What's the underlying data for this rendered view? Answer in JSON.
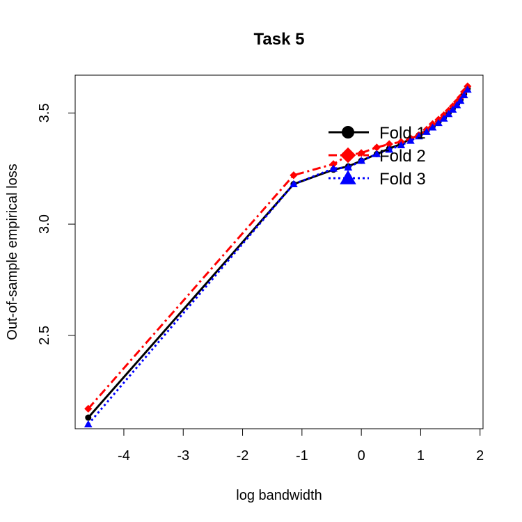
{
  "chart_data": {
    "type": "line",
    "title": "Task 5",
    "xlabel": "log bandwidth",
    "ylabel": "Out-of-sample empirical loss",
    "xlim": [
      -4.82,
      2.05
    ],
    "ylim": [
      2.08,
      3.67
    ],
    "xticks": [
      -4,
      -3,
      -2,
      -1,
      0,
      1,
      2
    ],
    "yticks": [
      2.5,
      3.0,
      3.5
    ],
    "legend_position": "top-right",
    "series": [
      {
        "name": "Fold 1",
        "color": "#000000",
        "line_style": "solid",
        "marker": "circle",
        "points": [
          [
            -4.6,
            2.13
          ],
          [
            -1.14,
            3.18
          ],
          [
            -0.47,
            3.245
          ],
          [
            -0.22,
            3.26
          ],
          [
            0,
            3.285
          ],
          [
            0.26,
            3.315
          ],
          [
            0.47,
            3.34
          ],
          [
            0.67,
            3.36
          ],
          [
            0.83,
            3.385
          ],
          [
            0.97,
            3.4
          ],
          [
            1.1,
            3.42
          ],
          [
            1.2,
            3.44
          ],
          [
            1.3,
            3.46
          ],
          [
            1.39,
            3.48
          ],
          [
            1.47,
            3.5
          ],
          [
            1.54,
            3.52
          ],
          [
            1.61,
            3.54
          ],
          [
            1.67,
            3.56
          ],
          [
            1.73,
            3.585
          ],
          [
            1.79,
            3.61
          ]
        ]
      },
      {
        "name": "Fold 2",
        "color": "#FF0000",
        "line_style": "dashdot",
        "marker": "diamond",
        "points": [
          [
            -4.6,
            2.17
          ],
          [
            -1.14,
            3.22
          ],
          [
            -0.47,
            3.27
          ],
          [
            -0.22,
            3.31
          ],
          [
            0,
            3.32
          ],
          [
            0.26,
            3.345
          ],
          [
            0.47,
            3.36
          ],
          [
            0.67,
            3.37
          ],
          [
            0.83,
            3.385
          ],
          [
            0.97,
            3.4
          ],
          [
            1.1,
            3.425
          ],
          [
            1.2,
            3.45
          ],
          [
            1.3,
            3.47
          ],
          [
            1.39,
            3.49
          ],
          [
            1.47,
            3.51
          ],
          [
            1.54,
            3.53
          ],
          [
            1.61,
            3.55
          ],
          [
            1.67,
            3.57
          ],
          [
            1.73,
            3.595
          ],
          [
            1.79,
            3.62
          ]
        ]
      },
      {
        "name": "Fold 3",
        "color": "#0000FF",
        "line_style": "dotted",
        "marker": "triangle",
        "points": [
          [
            -4.6,
            2.1
          ],
          [
            -1.14,
            3.18
          ],
          [
            -0.47,
            3.25
          ],
          [
            -0.22,
            3.255
          ],
          [
            0,
            3.285
          ],
          [
            0.26,
            3.315
          ],
          [
            0.47,
            3.335
          ],
          [
            0.67,
            3.355
          ],
          [
            0.83,
            3.375
          ],
          [
            0.97,
            3.395
          ],
          [
            1.1,
            3.415
          ],
          [
            1.2,
            3.435
          ],
          [
            1.3,
            3.455
          ],
          [
            1.39,
            3.475
          ],
          [
            1.47,
            3.495
          ],
          [
            1.54,
            3.515
          ],
          [
            1.61,
            3.535
          ],
          [
            1.67,
            3.555
          ],
          [
            1.73,
            3.58
          ],
          [
            1.79,
            3.605
          ]
        ]
      }
    ]
  }
}
